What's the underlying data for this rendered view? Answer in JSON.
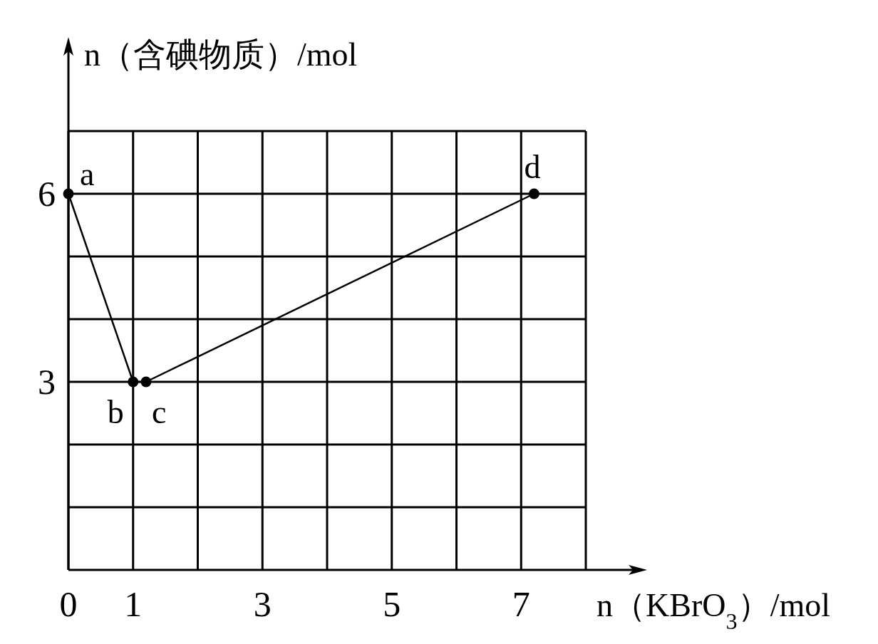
{
  "chart_data": {
    "type": "line",
    "xlabel": "n（KBrO$_{3}$）/mol",
    "ylabel": "n（含碘物质）/mol",
    "x": [
      0,
      1,
      1.2,
      7.2
    ],
    "series": [
      {
        "color": "#000000",
        "values": [
          6,
          3,
          3,
          6
        ]
      }
    ],
    "marker": "circle",
    "line_style": "solid",
    "grid": true,
    "xlim": [
      0,
      8
    ],
    "ylim": [
      0,
      7
    ],
    "xticks": [
      0,
      1,
      {
        "value": 2,
        "label": null
      },
      3,
      {
        "value": 4,
        "label": null
      },
      5,
      {
        "value": 6,
        "label": null
      },
      7,
      {
        "value": 8,
        "label": null
      }
    ],
    "yticks": [
      {
        "value": 1,
        "label": null
      },
      {
        "value": 2,
        "label": null
      },
      3,
      {
        "value": 4,
        "label": null
      },
      {
        "value": 5,
        "label": null
      },
      6,
      {
        "value": 7,
        "label": null
      }
    ],
    "annotations": [
      {
        "text": "a",
        "x": 0,
        "y": 6
      },
      {
        "text": "b",
        "x": 1,
        "y": 3
      },
      {
        "text": "c",
        "x": 1.2,
        "y": 3
      },
      {
        "text": "d",
        "x": 7.2,
        "y": 6
      }
    ]
  }
}
